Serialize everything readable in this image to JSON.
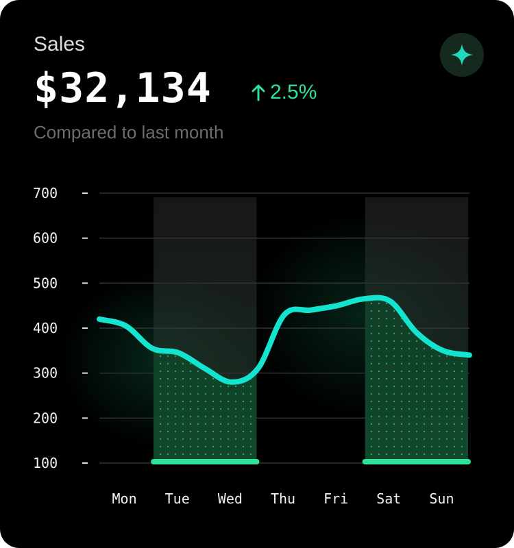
{
  "card": {
    "title": "Sales",
    "amount": "$32,134",
    "change": "2.5%",
    "subtitle": "Compared to last month",
    "accent": "#2de39a",
    "line_color": "#14e3cf",
    "icon": "sparkle-icon"
  },
  "chart_data": {
    "type": "line",
    "title": "Sales",
    "categories": [
      "Mon",
      "Tue",
      "Wed",
      "Thu",
      "Fri",
      "Sat",
      "Sun"
    ],
    "x": [
      0,
      0.5,
      1,
      1.5,
      2,
      2.5,
      3,
      3.5,
      4,
      4.5,
      5,
      5.5,
      6,
      6.5,
      7
    ],
    "series": [
      {
        "name": "Sales",
        "values": [
          420,
          405,
          355,
          345,
          310,
          280,
          310,
          430,
          440,
          450,
          465,
          460,
          390,
          350,
          340
        ]
      }
    ],
    "highlighted_categories": [
      "Tue",
      "Wed",
      "Sat",
      "Sun"
    ],
    "y_ticks": [
      700,
      600,
      500,
      400,
      300,
      200,
      100
    ],
    "ylim": [
      100,
      700
    ],
    "xlabel": "",
    "ylabel": "",
    "grid": true
  }
}
